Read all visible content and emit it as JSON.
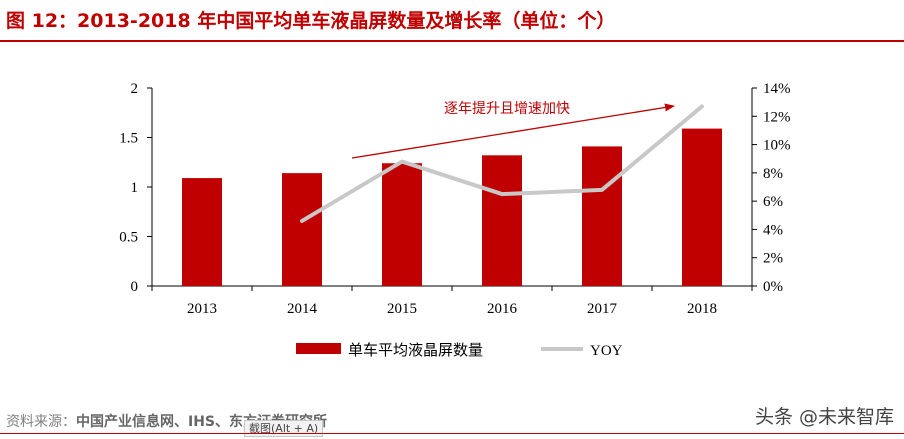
{
  "title": "图 12：2013-2018 年中国平均单车液晶屏数量及增长率（单位：个）",
  "chart_data": {
    "type": "bar",
    "categories": [
      "2013",
      "2014",
      "2015",
      "2016",
      "2017",
      "2018"
    ],
    "series": [
      {
        "name": "单车平均液晶屏数量",
        "type": "bar",
        "axis": "left",
        "values": [
          1.09,
          1.14,
          1.24,
          1.32,
          1.41,
          1.59
        ]
      },
      {
        "name": "YOY",
        "type": "line",
        "axis": "right",
        "values": [
          null,
          4.6,
          8.8,
          6.5,
          6.8,
          12.7
        ]
      }
    ],
    "y_left": {
      "ticks": [
        "0",
        "0.5",
        "1",
        "1.5",
        "2"
      ],
      "ylim": [
        0,
        2
      ]
    },
    "y_right": {
      "ticks": [
        "0%",
        "2%",
        "4%",
        "6%",
        "8%",
        "10%",
        "12%",
        "14%"
      ],
      "ylim": [
        0,
        14
      ]
    },
    "annotation": "逐年提升且增速加快",
    "legend_position": "bottom",
    "grid": false,
    "colors": {
      "bar": "#c00000",
      "line": "#c8c8c8",
      "annotation": "#c00000"
    }
  },
  "footer": {
    "source_prefix": "资料来源：",
    "source_orgs": "中国产业信息网、IHS、东方证券研究所",
    "tooltip": "截图(Alt + A)",
    "watermark_logo": "头条",
    "watermark_text": "@未来智库"
  }
}
